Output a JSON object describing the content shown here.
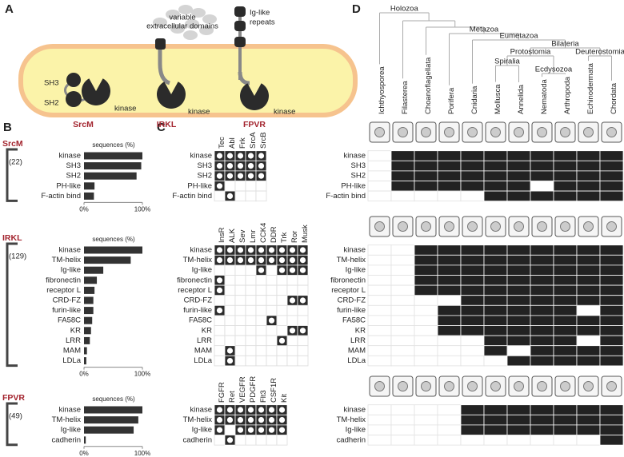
{
  "panel_a": {
    "label": "A",
    "extracellular_label": [
      "variable",
      "extracellular domains"
    ],
    "ig_label": [
      "Ig-like",
      "repeats"
    ],
    "domain_labels": [
      "SH3",
      "SH2"
    ],
    "kinase_labels": [
      "kinase",
      "kinase",
      "kinase"
    ],
    "proteins": [
      "SrcM",
      "IRKL",
      "FPVR"
    ]
  },
  "panel_b": {
    "label": "B",
    "axis_title": "sequences (%)",
    "xlim": [
      0,
      100
    ],
    "xticks": [
      {
        "value": 0,
        "label": "0%"
      },
      {
        "value": 100,
        "label": "100%"
      }
    ],
    "color": "#333333",
    "groups": [
      {
        "name": "SrcM",
        "count": "(22)",
        "rows": [
          "kinase",
          "SH3",
          "SH2",
          "PH-like",
          "F-actin bind"
        ],
        "values": [
          100,
          98,
          90,
          18,
          17
        ]
      },
      {
        "name": "IRKL",
        "count": "(129)",
        "rows": [
          "kinase",
          "TM-helix",
          "Ig-like",
          "fibronectin",
          "receptor L",
          "CRD-FZ",
          "furin-like",
          "FA58C",
          "KR",
          "LRR",
          "MAM",
          "LDLa"
        ],
        "values": [
          100,
          80,
          33,
          22,
          18,
          16,
          16,
          14,
          12,
          10,
          5,
          4
        ]
      },
      {
        "name": "FPVR",
        "count": "(49)",
        "rows": [
          "kinase",
          "TM-helix",
          "Ig-like",
          "cadherin"
        ],
        "values": [
          100,
          93,
          85,
          3
        ]
      }
    ]
  },
  "panel_c": {
    "label": "C",
    "groups": [
      {
        "columns": [
          "Tec",
          "Abl",
          "Frk",
          "SrcA",
          "SrcB"
        ],
        "cells": [
          [
            1,
            1,
            1,
            1,
            1
          ],
          [
            1,
            1,
            1,
            1,
            1
          ],
          [
            1,
            1,
            1,
            1,
            1
          ],
          [
            1,
            0,
            0,
            0,
            0
          ],
          [
            0,
            1,
            0,
            0,
            0
          ]
        ]
      },
      {
        "columns": [
          "InsR",
          "ALK",
          "Sev",
          "Lmr",
          "CCK4",
          "DDR",
          "Trk",
          "Ror",
          "Musk"
        ],
        "cells": [
          [
            1,
            1,
            1,
            1,
            1,
            1,
            1,
            1,
            1
          ],
          [
            1,
            1,
            1,
            1,
            1,
            1,
            1,
            1,
            1
          ],
          [
            0,
            0,
            0,
            0,
            1,
            0,
            1,
            1,
            1
          ],
          [
            1,
            0,
            0,
            0,
            0,
            0,
            0,
            0,
            0
          ],
          [
            1,
            0,
            0,
            0,
            0,
            0,
            0,
            0,
            0
          ],
          [
            0,
            0,
            0,
            0,
            0,
            0,
            0,
            1,
            1
          ],
          [
            1,
            0,
            0,
            0,
            0,
            0,
            0,
            0,
            0
          ],
          [
            0,
            0,
            0,
            0,
            0,
            1,
            0,
            0,
            0
          ],
          [
            0,
            0,
            0,
            0,
            0,
            0,
            0,
            1,
            1
          ],
          [
            0,
            0,
            0,
            0,
            0,
            0,
            1,
            0,
            0
          ],
          [
            0,
            1,
            0,
            0,
            0,
            0,
            0,
            0,
            0
          ],
          [
            0,
            1,
            0,
            0,
            0,
            0,
            0,
            0,
            0
          ]
        ]
      },
      {
        "columns": [
          "FGFR",
          "Ret",
          "VEGFR",
          "PDGFR",
          "Flt3",
          "CSF1R",
          "Kit"
        ],
        "cells": [
          [
            1,
            1,
            1,
            1,
            1,
            1,
            1
          ],
          [
            1,
            1,
            1,
            1,
            1,
            1,
            1
          ],
          [
            1,
            0,
            1,
            1,
            1,
            1,
            1
          ],
          [
            0,
            1,
            0,
            0,
            0,
            0,
            0
          ]
        ]
      }
    ]
  },
  "panel_d": {
    "label": "D",
    "clades": [
      "Holozoa",
      "Metazoa",
      "Eumetazoa",
      "Bilateria",
      "Protostomia",
      "Deuterostomia",
      "Spiralia",
      "Ecdysozoa"
    ],
    "taxa": [
      "Ichthyosporea",
      "Filasterea",
      "Choanoflagellata",
      "Porifera",
      "Cnidaria",
      "Mollusca",
      "Annelida",
      "Nematoda",
      "Arthropoda",
      "Echinodermata",
      "Chordata"
    ],
    "groups": [
      {
        "cells": [
          [
            0,
            1,
            1,
            1,
            1,
            1,
            1,
            1,
            1,
            1,
            1
          ],
          [
            0,
            1,
            1,
            1,
            1,
            1,
            1,
            1,
            1,
            1,
            1
          ],
          [
            0,
            1,
            1,
            1,
            1,
            1,
            1,
            1,
            1,
            1,
            1
          ],
          [
            0,
            1,
            1,
            1,
            1,
            1,
            1,
            0,
            1,
            1,
            1
          ],
          [
            0,
            0,
            0,
            0,
            0,
            1,
            1,
            1,
            1,
            1,
            1
          ]
        ]
      },
      {
        "cells": [
          [
            0,
            0,
            1,
            1,
            1,
            1,
            1,
            1,
            1,
            1,
            1
          ],
          [
            0,
            0,
            1,
            1,
            1,
            1,
            1,
            1,
            1,
            1,
            1
          ],
          [
            0,
            0,
            1,
            1,
            1,
            1,
            1,
            1,
            1,
            1,
            1
          ],
          [
            0,
            0,
            1,
            1,
            1,
            1,
            1,
            1,
            1,
            1,
            1
          ],
          [
            0,
            0,
            1,
            1,
            1,
            1,
            1,
            1,
            1,
            1,
            1
          ],
          [
            0,
            0,
            0,
            0,
            1,
            1,
            1,
            1,
            1,
            1,
            1
          ],
          [
            0,
            0,
            0,
            1,
            1,
            1,
            1,
            1,
            1,
            0,
            1
          ],
          [
            0,
            0,
            0,
            1,
            1,
            1,
            1,
            1,
            1,
            1,
            1
          ],
          [
            0,
            0,
            0,
            1,
            1,
            1,
            1,
            1,
            1,
            1,
            1
          ],
          [
            0,
            0,
            0,
            0,
            0,
            1,
            1,
            1,
            1,
            0,
            1
          ],
          [
            0,
            0,
            0,
            0,
            0,
            1,
            0,
            1,
            1,
            1,
            1
          ],
          [
            0,
            0,
            0,
            0,
            0,
            0,
            1,
            1,
            1,
            1,
            1
          ]
        ]
      },
      {
        "cells": [
          [
            0,
            0,
            0,
            0,
            1,
            1,
            1,
            1,
            1,
            1,
            1
          ],
          [
            0,
            0,
            0,
            0,
            1,
            1,
            1,
            1,
            1,
            1,
            1
          ],
          [
            0,
            0,
            0,
            0,
            1,
            1,
            1,
            1,
            1,
            1,
            1
          ],
          [
            0,
            0,
            0,
            0,
            0,
            0,
            0,
            0,
            0,
            0,
            1
          ]
        ]
      }
    ]
  }
}
